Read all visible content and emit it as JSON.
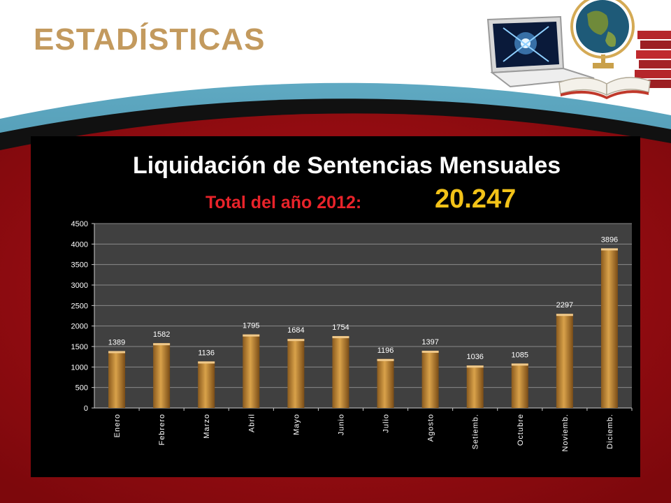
{
  "slide": {
    "heading": "ESTADÍSTICAS",
    "colors": {
      "heading": "#c39a5e",
      "accent_red": "#e8232a",
      "total_value": "#f2c218",
      "panel": "#000000",
      "band_red": "#9b0d12",
      "band_blue": "#2f7d97"
    },
    "decor_icons": [
      "laptop-icon",
      "globe-icon",
      "books-icon",
      "open-book-icon"
    ]
  },
  "chart_data": {
    "type": "bar",
    "title": "Liquidación de Sentencias Mensuales",
    "subtitle_label": "Total del año 2012:",
    "subtitle_value": "20.247",
    "categories": [
      "Enero",
      "Febrero",
      "Marzo",
      "Abril",
      "Mayo",
      "Junio",
      "Julio",
      "Agosto",
      "Setiemb.",
      "Octubre",
      "Noviemb.",
      "Diciemb."
    ],
    "values": [
      1389,
      1582,
      1136,
      1795,
      1684,
      1754,
      1196,
      1397,
      1036,
      1085,
      2297,
      3896
    ],
    "data_labels": [
      "1389",
      "1582",
      "1136",
      "1795",
      "1684",
      "1754",
      "1196",
      "1397",
      "1036",
      "1085",
      "2297",
      "3896"
    ],
    "ylim": [
      0,
      4500
    ],
    "yticks": [
      0,
      500,
      1000,
      1500,
      2000,
      2500,
      3000,
      3500,
      4000,
      4500
    ],
    "grid": true,
    "bar_color": "#d9a24a",
    "plot_background": "#404040"
  }
}
